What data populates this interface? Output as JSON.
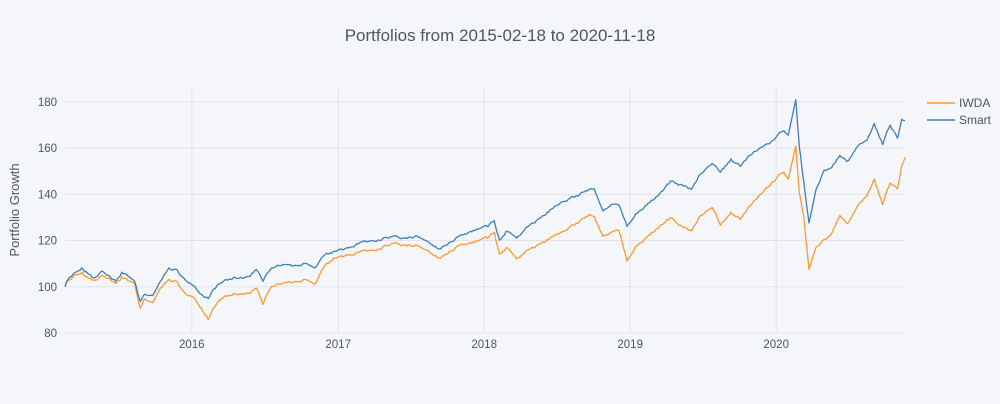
{
  "chart_data": {
    "type": "line",
    "title": "Portfolios from 2015-02-18 to 2020-11-18",
    "xlabel": "",
    "ylabel": "Portfolio Growth",
    "xlim": [
      "2015-02-18",
      "2020-11-18"
    ],
    "ylim": [
      80,
      186
    ],
    "x_ticks": [
      {
        "date": "2016-01-01",
        "label": "2016"
      },
      {
        "date": "2017-01-01",
        "label": "2017"
      },
      {
        "date": "2018-01-01",
        "label": "2018"
      },
      {
        "date": "2019-01-01",
        "label": "2019"
      },
      {
        "date": "2020-01-01",
        "label": "2020"
      }
    ],
    "y_ticks": [
      80,
      100,
      120,
      140,
      160,
      180
    ],
    "grid": true,
    "legend_position": "top-right",
    "series": [
      {
        "name": "IWDA",
        "color": "#ff9933",
        "points": [
          [
            "2015-02-18",
            100
          ],
          [
            "2015-03-01",
            103
          ],
          [
            "2015-03-15",
            105
          ],
          [
            "2015-04-01",
            106
          ],
          [
            "2015-04-15",
            104
          ],
          [
            "2015-05-01",
            103
          ],
          [
            "2015-05-20",
            105
          ],
          [
            "2015-06-10",
            103
          ],
          [
            "2015-06-25",
            101
          ],
          [
            "2015-07-10",
            104
          ],
          [
            "2015-07-25",
            103
          ],
          [
            "2015-08-10",
            102
          ],
          [
            "2015-08-25",
            91
          ],
          [
            "2015-09-05",
            95
          ],
          [
            "2015-09-25",
            93
          ],
          [
            "2015-10-15",
            100
          ],
          [
            "2015-11-05",
            103
          ],
          [
            "2015-11-25",
            102
          ],
          [
            "2015-12-15",
            97
          ],
          [
            "2016-01-05",
            96
          ],
          [
            "2016-01-25",
            91
          ],
          [
            "2016-02-11",
            86
          ],
          [
            "2016-02-25",
            91
          ],
          [
            "2016-03-15",
            95
          ],
          [
            "2016-04-15",
            97
          ],
          [
            "2016-05-15",
            97
          ],
          [
            "2016-06-10",
            99
          ],
          [
            "2016-06-27",
            93
          ],
          [
            "2016-07-15",
            100
          ],
          [
            "2016-08-15",
            102
          ],
          [
            "2016-09-15",
            102
          ],
          [
            "2016-10-15",
            103
          ],
          [
            "2016-11-04",
            101
          ],
          [
            "2016-11-25",
            108
          ],
          [
            "2016-12-20",
            112
          ],
          [
            "2017-01-20",
            113
          ],
          [
            "2017-03-01",
            115
          ],
          [
            "2017-04-10",
            116
          ],
          [
            "2017-05-15",
            119
          ],
          [
            "2017-06-15",
            118
          ],
          [
            "2017-07-15",
            118
          ],
          [
            "2017-08-15",
            116
          ],
          [
            "2017-09-10",
            112
          ],
          [
            "2017-10-05",
            115
          ],
          [
            "2017-11-01",
            118
          ],
          [
            "2017-12-01",
            119
          ],
          [
            "2018-01-10",
            121
          ],
          [
            "2018-01-26",
            124
          ],
          [
            "2018-02-08",
            114
          ],
          [
            "2018-02-25",
            117
          ],
          [
            "2018-03-23",
            112
          ],
          [
            "2018-04-15",
            115
          ],
          [
            "2018-05-15",
            118
          ],
          [
            "2018-06-15",
            121
          ],
          [
            "2018-07-15",
            124
          ],
          [
            "2018-08-15",
            127
          ],
          [
            "2018-09-20",
            131
          ],
          [
            "2018-10-03",
            131
          ],
          [
            "2018-10-25",
            122
          ],
          [
            "2018-11-15",
            124
          ],
          [
            "2018-12-03",
            125
          ],
          [
            "2018-12-24",
            111
          ],
          [
            "2019-01-15",
            117
          ],
          [
            "2019-02-15",
            122
          ],
          [
            "2019-03-15",
            126
          ],
          [
            "2019-04-15",
            130
          ],
          [
            "2019-05-10",
            126
          ],
          [
            "2019-06-03",
            124
          ],
          [
            "2019-06-25",
            131
          ],
          [
            "2019-07-25",
            134
          ],
          [
            "2019-08-15",
            127
          ],
          [
            "2019-09-10",
            132
          ],
          [
            "2019-10-03",
            129
          ],
          [
            "2019-10-25",
            135
          ],
          [
            "2019-11-25",
            140
          ],
          [
            "2019-12-20",
            145
          ],
          [
            "2020-01-20",
            150
          ],
          [
            "2020-01-31",
            147
          ],
          [
            "2020-02-19",
            161
          ],
          [
            "2020-02-28",
            140
          ],
          [
            "2020-03-10",
            130
          ],
          [
            "2020-03-23",
            107
          ],
          [
            "2020-04-10",
            118
          ],
          [
            "2020-04-30",
            120
          ],
          [
            "2020-05-15",
            122
          ],
          [
            "2020-06-08",
            131
          ],
          [
            "2020-06-26",
            127
          ],
          [
            "2020-07-20",
            134
          ],
          [
            "2020-08-15",
            140
          ],
          [
            "2020-09-02",
            146
          ],
          [
            "2020-09-23",
            136
          ],
          [
            "2020-10-12",
            145
          ],
          [
            "2020-10-30",
            142
          ],
          [
            "2020-11-10",
            153
          ],
          [
            "2020-11-18",
            156
          ]
        ]
      },
      {
        "name": "Smart",
        "color": "#3d7fbf",
        "points": [
          [
            "2015-02-18",
            100
          ],
          [
            "2015-03-01",
            104
          ],
          [
            "2015-03-15",
            106
          ],
          [
            "2015-04-01",
            108
          ],
          [
            "2015-04-15",
            106
          ],
          [
            "2015-05-01",
            104
          ],
          [
            "2015-05-20",
            107
          ],
          [
            "2015-06-10",
            104
          ],
          [
            "2015-06-25",
            102
          ],
          [
            "2015-07-10",
            106
          ],
          [
            "2015-07-25",
            105
          ],
          [
            "2015-08-10",
            103
          ],
          [
            "2015-08-25",
            94
          ],
          [
            "2015-09-05",
            97
          ],
          [
            "2015-09-25",
            96
          ],
          [
            "2015-10-15",
            103
          ],
          [
            "2015-11-05",
            108
          ],
          [
            "2015-11-25",
            107
          ],
          [
            "2015-12-15",
            103
          ],
          [
            "2016-01-05",
            101
          ],
          [
            "2016-01-25",
            97
          ],
          [
            "2016-02-11",
            95
          ],
          [
            "2016-02-25",
            99
          ],
          [
            "2016-03-15",
            102
          ],
          [
            "2016-04-15",
            104
          ],
          [
            "2016-05-15",
            104
          ],
          [
            "2016-06-10",
            107
          ],
          [
            "2016-06-27",
            103
          ],
          [
            "2016-07-15",
            108
          ],
          [
            "2016-08-15",
            110
          ],
          [
            "2016-09-15",
            109
          ],
          [
            "2016-10-15",
            110
          ],
          [
            "2016-11-04",
            108
          ],
          [
            "2016-11-25",
            113
          ],
          [
            "2016-12-20",
            115
          ],
          [
            "2017-01-20",
            116
          ],
          [
            "2017-03-01",
            119
          ],
          [
            "2017-04-10",
            120
          ],
          [
            "2017-05-15",
            122
          ],
          [
            "2017-06-15",
            121
          ],
          [
            "2017-07-15",
            122
          ],
          [
            "2017-08-15",
            120
          ],
          [
            "2017-09-10",
            116
          ],
          [
            "2017-10-05",
            119
          ],
          [
            "2017-11-01",
            122
          ],
          [
            "2017-12-01",
            124
          ],
          [
            "2018-01-10",
            126
          ],
          [
            "2018-01-26",
            129
          ],
          [
            "2018-02-08",
            120
          ],
          [
            "2018-02-25",
            124
          ],
          [
            "2018-03-23",
            121
          ],
          [
            "2018-04-15",
            125
          ],
          [
            "2018-05-15",
            129
          ],
          [
            "2018-06-15",
            133
          ],
          [
            "2018-07-15",
            137
          ],
          [
            "2018-08-15",
            139
          ],
          [
            "2018-09-20",
            142
          ],
          [
            "2018-10-03",
            143
          ],
          [
            "2018-10-25",
            133
          ],
          [
            "2018-11-15",
            136
          ],
          [
            "2018-12-03",
            136
          ],
          [
            "2018-12-24",
            126
          ],
          [
            "2019-01-15",
            131
          ],
          [
            "2019-02-15",
            136
          ],
          [
            "2019-03-15",
            140
          ],
          [
            "2019-04-15",
            146
          ],
          [
            "2019-05-10",
            144
          ],
          [
            "2019-06-03",
            142
          ],
          [
            "2019-06-25",
            149
          ],
          [
            "2019-07-25",
            153
          ],
          [
            "2019-08-15",
            150
          ],
          [
            "2019-09-10",
            155
          ],
          [
            "2019-10-03",
            152
          ],
          [
            "2019-10-25",
            157
          ],
          [
            "2019-11-25",
            160
          ],
          [
            "2019-12-20",
            163
          ],
          [
            "2020-01-20",
            168
          ],
          [
            "2020-01-31",
            166
          ],
          [
            "2020-02-19",
            181
          ],
          [
            "2020-02-28",
            160
          ],
          [
            "2020-03-10",
            145
          ],
          [
            "2020-03-23",
            127
          ],
          [
            "2020-04-10",
            143
          ],
          [
            "2020-04-30",
            150
          ],
          [
            "2020-05-15",
            151
          ],
          [
            "2020-06-08",
            157
          ],
          [
            "2020-06-26",
            154
          ],
          [
            "2020-07-20",
            160
          ],
          [
            "2020-08-15",
            164
          ],
          [
            "2020-09-02",
            170
          ],
          [
            "2020-09-23",
            162
          ],
          [
            "2020-10-12",
            170
          ],
          [
            "2020-10-30",
            164
          ],
          [
            "2020-11-10",
            173
          ],
          [
            "2020-11-18",
            172
          ]
        ]
      }
    ]
  }
}
